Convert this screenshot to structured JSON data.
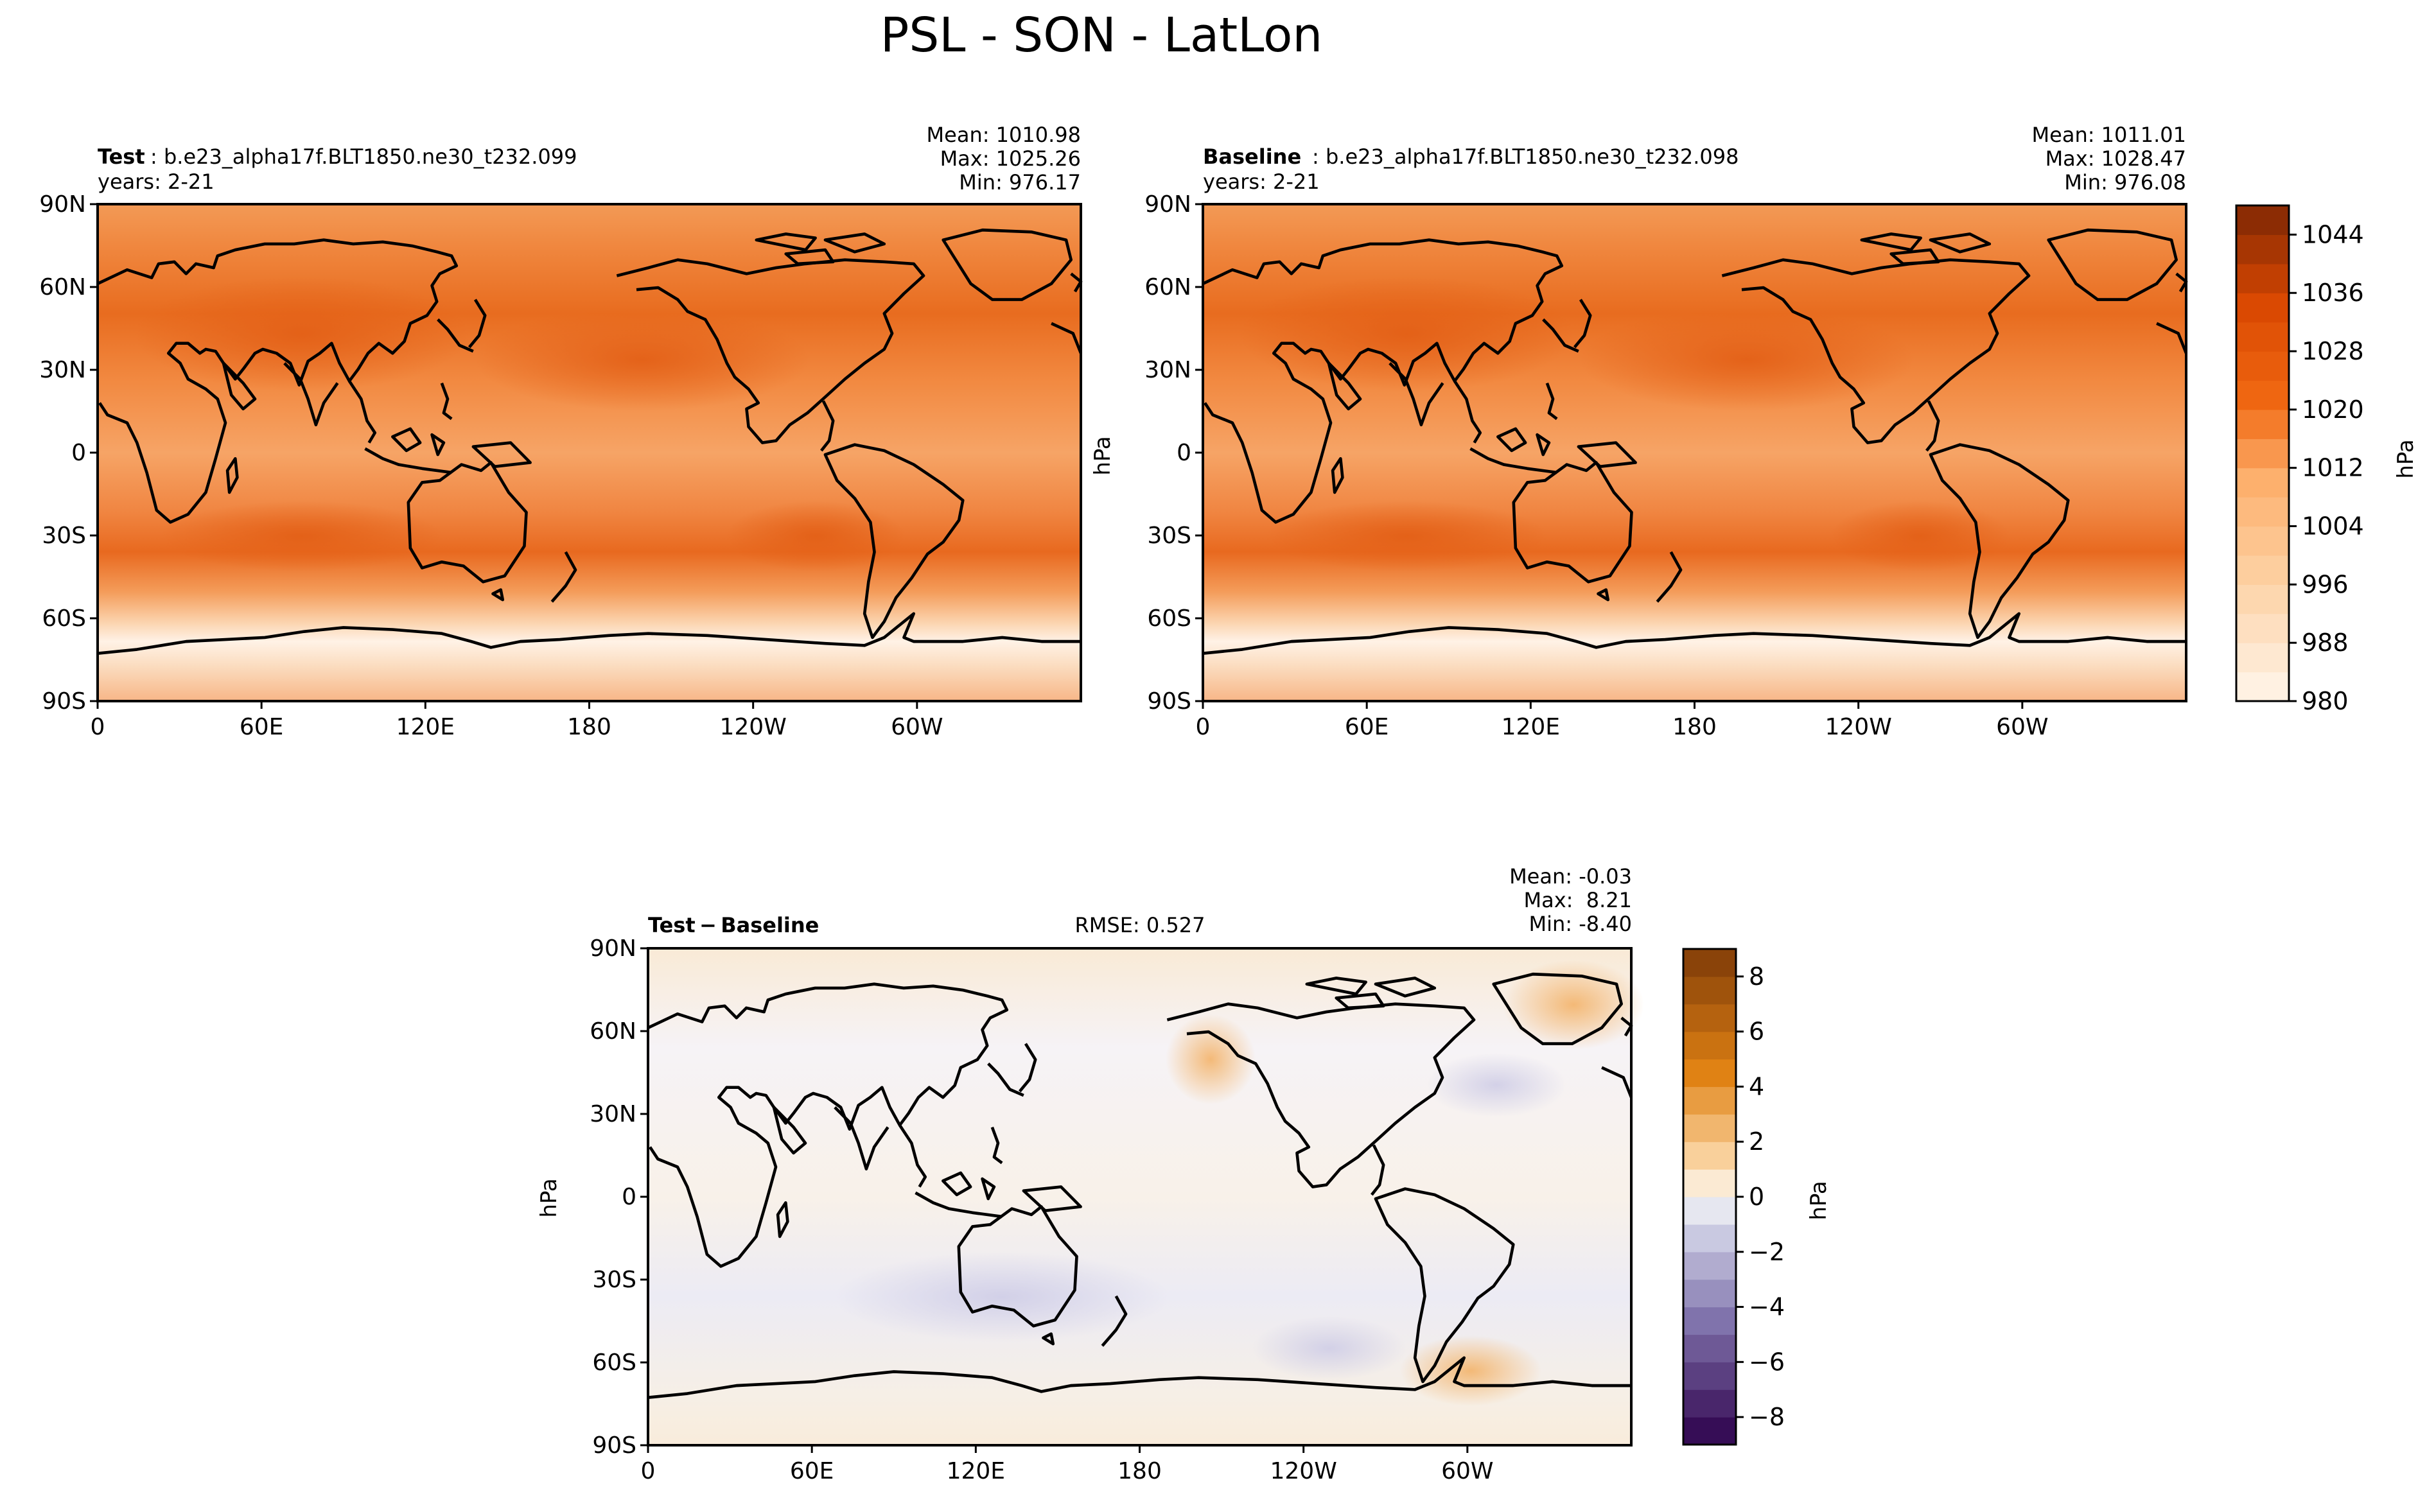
{
  "figure": {
    "title": "PSL - SON - LatLon"
  },
  "panels": {
    "test": {
      "label": "Test",
      "case": ": b.e23_alpha17f.BLT1850.ne30_t232.099",
      "years": "years: 2-21",
      "stats": [
        "Mean: 1010.98",
        "Max: 1025.26",
        "Min: 976.17"
      ]
    },
    "baseline": {
      "label": "Baseline",
      "case": ": b.e23_alpha17f.BLT1850.ne30_t232.098",
      "years": "years: 2-21",
      "stats": [
        "Mean: 1011.01",
        "Max: 1028.47",
        "Min: 976.08"
      ]
    },
    "diff": {
      "label": "Test − Baseline",
      "rmse": "RMSE: 0.527",
      "stats": [
        "Mean: -0.03",
        "Max:  8.21",
        "Min: -8.40"
      ]
    }
  },
  "colorbars": {
    "top": {
      "unit": "hPa",
      "ticks": [
        "980",
        "988",
        "996",
        "1004",
        "1012",
        "1020",
        "1028",
        "1036",
        "1044"
      ]
    },
    "diff": {
      "unit": "hPa",
      "ticks": [
        "−8",
        "−6",
        "−4",
        "−2",
        "0",
        "2",
        "4",
        "6",
        "8"
      ]
    }
  },
  "axes": {
    "ylabel": "hPa",
    "lat_ticks": [
      "90N",
      "60N",
      "30N",
      "0",
      "30S",
      "60S",
      "90S"
    ],
    "lon_ticks": [
      "0",
      "60E",
      "120E",
      "180",
      "120W",
      "60W"
    ]
  },
  "chart_data": [
    {
      "type": "heatmap",
      "name": "Test",
      "variable": "PSL",
      "season": "SON",
      "x_range_lon": [
        0,
        360
      ],
      "y_range_lat": [
        -90,
        90
      ],
      "value_range": [
        976.17,
        1025.26
      ],
      "mean": 1010.98,
      "colormap": "Oranges",
      "levels": [
        980,
        1048,
        4
      ]
    },
    {
      "type": "heatmap",
      "name": "Baseline",
      "variable": "PSL",
      "season": "SON",
      "x_range_lon": [
        0,
        360
      ],
      "y_range_lat": [
        -90,
        90
      ],
      "value_range": [
        976.08,
        1028.47
      ],
      "mean": 1011.01,
      "colormap": "Oranges",
      "levels": [
        980,
        1048,
        4
      ]
    },
    {
      "type": "heatmap",
      "name": "Test − Baseline",
      "variable": "PSL",
      "season": "SON",
      "x_range_lon": [
        0,
        360
      ],
      "y_range_lat": [
        -90,
        90
      ],
      "value_range": [
        -8.4,
        8.21
      ],
      "mean": -0.03,
      "rmse": 0.527,
      "colormap": "PuOr_r",
      "levels": [
        -9,
        9,
        1
      ]
    }
  ]
}
